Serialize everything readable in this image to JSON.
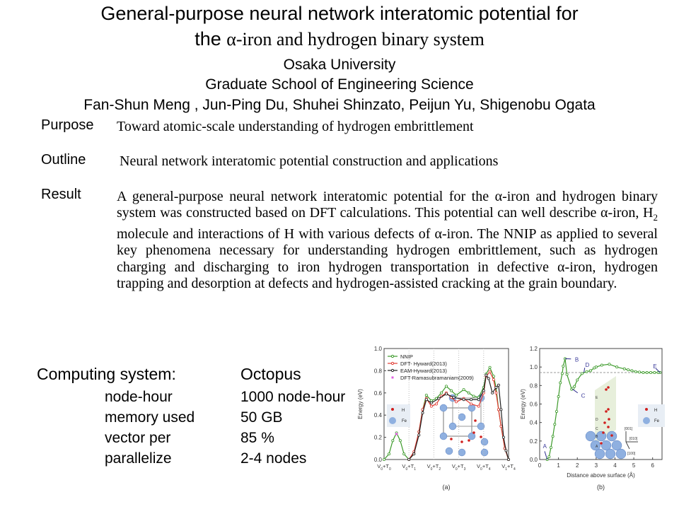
{
  "header": {
    "title_line1": "General-purpose neural network interatomic potential for",
    "title_line2_prefix": "the ",
    "title_line2_rest": "α-iron and hydrogen binary system",
    "organization": "Osaka University",
    "school": "Graduate School of Engineering Science",
    "authors": "Fan-Shun Meng , Jun-Ping Du, Shuhei Shinzato, Peijun Yu, Shigenobu Ogata"
  },
  "sections": {
    "purpose": {
      "label": "Purpose",
      "text": "Toward atomic-scale understanding of hydrogen embrittlement"
    },
    "outline": {
      "label": "Outline",
      "text": "Neural network interatomic potential construction and applications"
    },
    "result": {
      "label": "Result",
      "text_part1": "A general-purpose neural network interatomic potential for the α-iron and hydrogen binary system was constructed based on DFT calculations.  This potential can well describe α-iron, H",
      "text_sub": "2",
      "text_part2": " molecule and  interactions of H with various defects of α-iron. The NNIP as applied to several key phenomena necessary for understanding hydrogen embrittlement, such as hydrogen charging and discharging to iron hydrogen transportation in defective α-iron, hydrogen trapping and desorption at defects and hydrogen-assisted cracking at the grain boundary."
    }
  },
  "computing": {
    "title": "Computing system:",
    "system": "Octopus",
    "rows": [
      {
        "label": "node-hour",
        "value": "1000 node-hour"
      },
      {
        "label": "memory used",
        "value": "50 GB"
      },
      {
        "label": "vector per",
        "value": "85 %"
      },
      {
        "label": "parallelize",
        "value": "2-4 nodes"
      }
    ]
  },
  "chart_data": [
    {
      "type": "line",
      "caption": "(a)",
      "ylabel": "Energy (eV)",
      "xlabel": "",
      "categories": [
        "V0+T0",
        "V0+T1",
        "V0+T2",
        "V0+T3",
        "V0+T4",
        "V1+T4"
      ],
      "category_labels": [
        [
          "V",
          "0",
          "+T",
          "0"
        ],
        [
          "V",
          "0",
          "+T",
          "1"
        ],
        [
          "V",
          "0",
          "+T",
          "2"
        ],
        [
          "V",
          "0",
          "+T",
          "3"
        ],
        [
          "V",
          "0",
          "+T",
          "4"
        ],
        [
          "V",
          "1",
          "+T",
          "4"
        ]
      ],
      "xlim": [
        0,
        5
      ],
      "ylim": [
        0,
        1.0
      ],
      "yticks": [
        0.0,
        0.2,
        0.4,
        0.6,
        0.8,
        1.0
      ],
      "ytick_labels": [
        "0.0",
        "0.2",
        "0.4",
        "0.6",
        "0.8",
        "1.0"
      ],
      "legend_position": "top-left",
      "grid": "vertical dotted at categories",
      "inset_legend": [
        {
          "label": "H",
          "color": "#d0201e"
        },
        {
          "label": "Fe",
          "color": "#8fb0e0"
        }
      ],
      "series": [
        {
          "name": "NNIP",
          "color": "#3c9a2a",
          "points": [
            [
              0,
              0
            ],
            [
              0.2,
              0.05
            ],
            [
              0.35,
              0.17
            ],
            [
              0.5,
              0.24
            ],
            [
              0.65,
              0.17
            ],
            [
              0.8,
              0.05
            ],
            [
              1,
              0
            ],
            [
              1.2,
              0.05
            ],
            [
              1.4,
              0.25
            ],
            [
              1.55,
              0.45
            ],
            [
              1.7,
              0.58
            ],
            [
              1.9,
              0.53
            ],
            [
              2.1,
              0.55
            ],
            [
              2.3,
              0.6
            ],
            [
              2.5,
              0.66
            ],
            [
              2.7,
              0.62
            ],
            [
              2.9,
              0.58
            ],
            [
              3.2,
              0.63
            ],
            [
              3.4,
              0.6
            ],
            [
              3.6,
              0.57
            ],
            [
              3.8,
              0.56
            ],
            [
              4.0,
              0.65
            ],
            [
              4.1,
              0.77
            ],
            [
              4.25,
              0.83
            ],
            [
              4.4,
              0.75
            ],
            [
              4.5,
              0.65
            ],
            [
              4.6,
              0.45
            ],
            [
              4.7,
              0.3
            ],
            [
              4.85,
              0.1
            ],
            [
              5,
              0
            ]
          ]
        },
        {
          "name": "DFT- Hyward(2013)",
          "color": "#e23a32",
          "points": [
            [
              1,
              0
            ],
            [
              1.2,
              0.07
            ],
            [
              1.4,
              0.25
            ],
            [
              1.55,
              0.45
            ],
            [
              1.7,
              0.55
            ],
            [
              1.9,
              0.48
            ],
            [
              2.1,
              0.5
            ],
            [
              2.3,
              0.57
            ],
            [
              2.5,
              0.6
            ],
            [
              2.7,
              0.56
            ],
            [
              2.9,
              0.52
            ],
            [
              3.2,
              0.55
            ],
            [
              3.5,
              0.5
            ],
            [
              3.8,
              0.48
            ],
            [
              4.0,
              0.6
            ],
            [
              4.1,
              0.75
            ],
            [
              4.25,
              0.79
            ],
            [
              4.4,
              0.72
            ],
            [
              4.5,
              0.6
            ],
            [
              4.6,
              0.45
            ],
            [
              4.7,
              0.3
            ],
            [
              4.85,
              0.1
            ],
            [
              5,
              0
            ]
          ]
        },
        {
          "name": "EAM-Hyward(2013)",
          "color": "#222222",
          "points": [
            [
              1,
              0
            ],
            [
              1.2,
              0.05
            ],
            [
              1.4,
              0.22
            ],
            [
              1.55,
              0.42
            ],
            [
              1.7,
              0.54
            ],
            [
              1.9,
              0.51
            ],
            [
              2.2,
              0.55
            ],
            [
              2.5,
              0.59
            ],
            [
              2.8,
              0.56
            ],
            [
              3.2,
              0.54
            ],
            [
              3.5,
              0.54
            ],
            [
              3.8,
              0.54
            ],
            [
              4.0,
              0.62
            ],
            [
              4.1,
              0.76
            ],
            [
              4.2,
              0.73
            ],
            [
              4.35,
              0.6
            ],
            [
              4.5,
              0.65
            ],
            [
              4.6,
              0.67
            ],
            [
              4.7,
              0.45
            ],
            [
              4.8,
              0.2
            ],
            [
              4.9,
              0.08
            ],
            [
              5,
              0
            ]
          ]
        },
        {
          "name": "DFT-Ramasubramaniam(2009)",
          "color": "#e060e0",
          "marker_only": true,
          "points": [
            [
              0.5,
              0.23
            ]
          ]
        }
      ]
    },
    {
      "type": "line",
      "caption": "(b)",
      "ylabel": "Energy (eV)",
      "xlabel": "Distance above surface (Å)",
      "xlim": [
        0,
        6.5
      ],
      "ylim": [
        0,
        1.2
      ],
      "xticks": [
        0,
        1,
        2,
        3,
        4,
        5,
        6
      ],
      "xtick_labels": [
        "0",
        "1",
        "2",
        "3",
        "4",
        "5",
        "6"
      ],
      "yticks": [
        0.0,
        0.2,
        0.4,
        0.6,
        0.8,
        1.0,
        1.2
      ],
      "ytick_labels": [
        "0.0",
        "0.2",
        "0.4",
        "0.6",
        "0.8",
        "1.0",
        "1.2"
      ],
      "reference_line": 0.94,
      "inset_legend": [
        {
          "label": "H",
          "color": "#d0201e"
        },
        {
          "label": "Fe",
          "color": "#8fb0e0"
        }
      ],
      "axis_labels": [
        "[001]",
        "[010]",
        "[100]"
      ],
      "annotations": [
        {
          "label": "A",
          "x": 0.4,
          "y": 0
        },
        {
          "label": "B",
          "x": 1.35,
          "y": 1.09
        },
        {
          "label": "C",
          "x": 1.75,
          "y": 0.76
        },
        {
          "label": "D",
          "x": 2.35,
          "y": 0.94
        },
        {
          "label": "E",
          "x": 6.4,
          "y": 0.94
        }
      ],
      "series": [
        {
          "name": "NNIP",
          "color": "#3c9a2a",
          "points": [
            [
              0.4,
              0
            ],
            [
              0.5,
              0.03
            ],
            [
              0.6,
              0.13
            ],
            [
              0.7,
              0.25
            ],
            [
              0.8,
              0.38
            ],
            [
              0.9,
              0.52
            ],
            [
              1.0,
              0.68
            ],
            [
              1.1,
              0.83
            ],
            [
              1.2,
              0.93
            ],
            [
              1.25,
              1.01
            ],
            [
              1.35,
              1.09
            ],
            [
              1.45,
              0.92
            ],
            [
              1.7,
              0.76
            ],
            [
              1.78,
              0.77
            ],
            [
              1.85,
              0.79
            ],
            [
              2.0,
              0.86
            ],
            [
              2.25,
              0.93
            ],
            [
              2.5,
              0.95
            ],
            [
              2.7,
              0.96
            ],
            [
              2.9,
              0.99
            ],
            [
              3.0,
              1.0
            ],
            [
              3.3,
              1.02
            ],
            [
              3.7,
              1.03
            ],
            [
              4.1,
              1.0
            ],
            [
              4.5,
              0.98
            ],
            [
              4.7,
              0.97
            ],
            [
              4.9,
              0.96
            ],
            [
              5.1,
              0.95
            ],
            [
              5.3,
              0.945
            ],
            [
              5.5,
              0.94
            ],
            [
              5.7,
              0.94
            ],
            [
              5.9,
              0.94
            ],
            [
              6.1,
              0.94
            ],
            [
              6.3,
              0.94
            ],
            [
              6.4,
              0.94
            ]
          ]
        }
      ]
    }
  ]
}
